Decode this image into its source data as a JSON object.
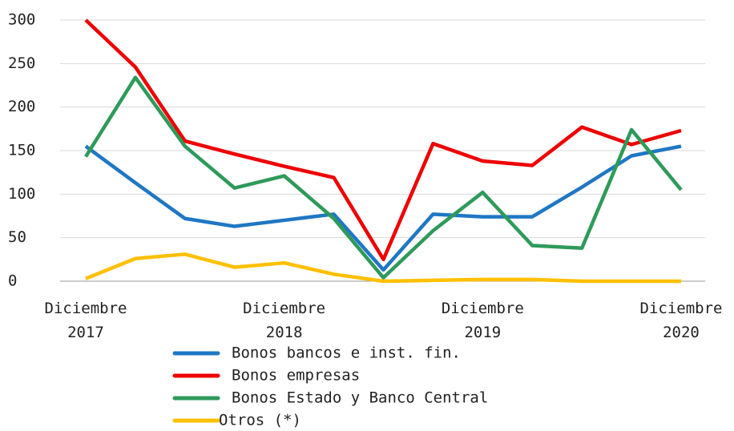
{
  "chart_data": {
    "type": "line",
    "categories": [
      "Diciembre\n2017",
      null,
      null,
      null,
      "Diciembre\n2018",
      null,
      null,
      null,
      "Diciembre\n2019",
      null,
      null,
      null,
      "Diciembre\n2020"
    ],
    "series": [
      {
        "name": "Bonos bancos e inst. fin.",
        "color": "#1f77c4",
        "values": [
          155,
          113,
          72,
          63,
          70,
          77,
          13,
          77,
          74,
          74,
          108,
          144,
          155
        ]
      },
      {
        "name": "Bonos empresas",
        "color": "#ee0000",
        "values": [
          300,
          246,
          161,
          146,
          132,
          119,
          25,
          158,
          138,
          133,
          177,
          157,
          173
        ]
      },
      {
        "name": "Bonos Estado y Banco Central",
        "color": "#2e9a5a",
        "values": [
          143,
          234,
          155,
          107,
          121,
          72,
          4,
          58,
          102,
          41,
          38,
          174,
          105
        ]
      },
      {
        "name": "Otros (*)",
        "color": "#ffc000",
        "values": [
          3,
          26,
          31,
          16,
          21,
          8,
          0,
          1,
          2,
          2,
          0,
          0,
          0
        ]
      }
    ],
    "ylim": [
      0,
      300
    ],
    "yticks": [
      0,
      50,
      100,
      150,
      200,
      250,
      300
    ],
    "grid": true
  }
}
